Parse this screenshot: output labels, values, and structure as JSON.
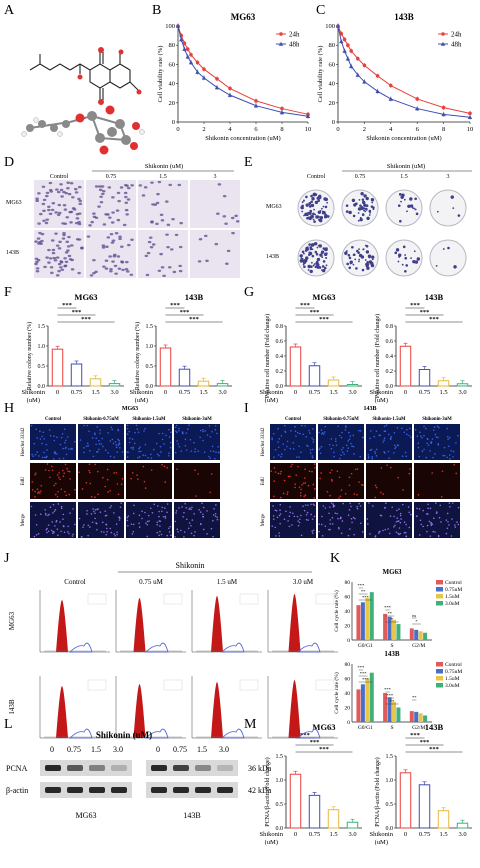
{
  "panels": {
    "A": "A",
    "B": "B",
    "C": "C",
    "D": "D",
    "E": "E",
    "F": "F",
    "G": "G",
    "H": "H",
    "I": "I",
    "J": "J",
    "K": "K",
    "L": "L",
    "M": "M"
  },
  "chart_data": [
    {
      "id": "B",
      "type": "line",
      "title": "MG63",
      "xlabel": "Shikonin concentration (uM)",
      "ylabel": "Cell viability rate (%)",
      "xlim": [
        0,
        10
      ],
      "ylim": [
        0,
        100
      ],
      "xticks": [
        "0",
        "2",
        "4",
        "6",
        "8",
        "10"
      ],
      "yticks": [
        "0",
        "20",
        "40",
        "60",
        "80",
        "100"
      ],
      "x": [
        0,
        0.25,
        0.5,
        0.75,
        1,
        1.5,
        2,
        3,
        4,
        6,
        8,
        10
      ],
      "series": [
        {
          "name": "24h",
          "color": "#e8413e",
          "values": [
            100,
            90,
            82,
            76,
            70,
            62,
            55,
            45,
            35,
            22,
            14,
            8
          ]
        },
        {
          "name": "48h",
          "color": "#3f4fb0",
          "values": [
            100,
            86,
            76,
            68,
            62,
            52,
            46,
            36,
            28,
            17,
            10,
            6
          ]
        }
      ],
      "legend": "top-right"
    },
    {
      "id": "C",
      "type": "line",
      "title": "143B",
      "xlabel": "Shikonin concentration (uM)",
      "ylabel": "Cell viability rate (%)",
      "xlim": [
        0,
        10
      ],
      "ylim": [
        0,
        100
      ],
      "xticks": [
        "0",
        "2",
        "4",
        "6",
        "8",
        "10"
      ],
      "yticks": [
        "0",
        "20",
        "40",
        "60",
        "80",
        "100"
      ],
      "x": [
        0,
        0.25,
        0.5,
        0.75,
        1,
        1.5,
        2,
        3,
        4,
        6,
        8,
        10
      ],
      "series": [
        {
          "name": "24h",
          "color": "#e8413e",
          "values": [
            100,
            92,
            86,
            80,
            74,
            66,
            59,
            48,
            38,
            24,
            15,
            9
          ]
        },
        {
          "name": "48h",
          "color": "#3f4fb0",
          "values": [
            100,
            84,
            74,
            66,
            58,
            49,
            42,
            32,
            24,
            14,
            8,
            5
          ]
        }
      ],
      "legend": "top-right"
    },
    {
      "id": "F1",
      "type": "bar",
      "title": "MG63",
      "ylabel": "Relative colony number (%)",
      "xlabel": "Shikonin\n(uM)",
      "categories": [
        "0",
        "0.75",
        "1.5",
        "3.0"
      ],
      "values": [
        0.92,
        0.55,
        0.18,
        0.06
      ],
      "ylim": [
        0,
        1.5
      ],
      "yticks": [
        "0.0",
        "0.5",
        "1.0",
        "1.5"
      ],
      "sig": [
        "***",
        "***",
        "***"
      ]
    },
    {
      "id": "F2",
      "type": "bar",
      "title": "143B",
      "ylabel": "Relative colony number (%)",
      "xlabel": "Shikonin\n(uM)",
      "categories": [
        "0",
        "0.75",
        "1.5",
        "3.0"
      ],
      "values": [
        0.95,
        0.42,
        0.12,
        0.06
      ],
      "ylim": [
        0,
        1.5
      ],
      "yticks": [
        "0.0",
        "0.5",
        "1.0",
        "1.5"
      ],
      "sig": [
        "***",
        "***",
        "***"
      ]
    },
    {
      "id": "G1",
      "type": "bar",
      "title": "MG63",
      "ylabel": "Positive cell number (Fold change)",
      "xlabel": "Shikonin\n(uM)",
      "categories": [
        "0",
        "0.75",
        "1.5",
        "3.0"
      ],
      "values": [
        0.52,
        0.27,
        0.08,
        0.02
      ],
      "ylim": [
        0,
        0.8
      ],
      "yticks": [
        "0.0",
        "0.2",
        "0.4",
        "0.6",
        "0.8"
      ],
      "sig": [
        "***",
        "***",
        "***"
      ]
    },
    {
      "id": "G2",
      "type": "bar",
      "title": "143B",
      "ylabel": "Positive cell number (Fold change)",
      "xlabel": "Shikonin\n(uM)",
      "categories": [
        "0",
        "0.75",
        "1.5",
        "3.0"
      ],
      "values": [
        0.53,
        0.22,
        0.07,
        0.03
      ],
      "ylim": [
        0,
        0.8
      ],
      "yticks": [
        "0.0",
        "0.2",
        "0.4",
        "0.6",
        "0.8"
      ],
      "sig": [
        "***",
        "***",
        "***"
      ]
    },
    {
      "id": "M1",
      "type": "bar",
      "title": "MG63",
      "ylabel": "PCNA/β-actin (Fold change)",
      "xlabel": "Shikonin\n(uM)",
      "categories": [
        "0",
        "0.75",
        "1.5",
        "3.0"
      ],
      "values": [
        1.12,
        0.68,
        0.38,
        0.12
      ],
      "ylim": [
        0,
        1.5
      ],
      "yticks": [
        "0.0",
        "0.5",
        "1.0",
        "1.5"
      ],
      "sig": [
        "***",
        "***",
        "***"
      ]
    },
    {
      "id": "M2",
      "type": "bar",
      "title": "143B",
      "ylabel": "PCNA/β-actin (Fold change)",
      "xlabel": "Shikonin\n(uM)",
      "categories": [
        "0",
        "0.75",
        "1.5",
        "3.0"
      ],
      "values": [
        1.15,
        0.9,
        0.36,
        0.1
      ],
      "ylim": [
        0,
        1.5
      ],
      "yticks": [
        "0.0",
        "0.5",
        "1.0",
        "1.5"
      ],
      "sig": [
        "***",
        "***",
        "***"
      ]
    },
    {
      "id": "K1",
      "type": "bar",
      "title": "MG63",
      "ylabel": "Cell cycle rate (%)",
      "categories": [
        "G0/G1",
        "S",
        "G2/M"
      ],
      "ylim": [
        0,
        80
      ],
      "yticks": [
        "0",
        "20",
        "40",
        "60",
        "80"
      ],
      "series": [
        {
          "name": "Control",
          "color": "#e05a5a",
          "values": [
            48,
            36,
            16
          ]
        },
        {
          "name": "0.75uM",
          "color": "#4a6fc4",
          "values": [
            52,
            32,
            14
          ]
        },
        {
          "name": "1.5uM",
          "color": "#e8c64a",
          "values": [
            58,
            28,
            12
          ]
        },
        {
          "name": "3.0uM",
          "color": "#3fb07a",
          "values": [
            66,
            22,
            10
          ]
        }
      ],
      "legend": "right",
      "sig": [
        "***",
        "**",
        "***",
        "***",
        "**",
        "*",
        "ns",
        "*"
      ]
    },
    {
      "id": "K2",
      "type": "bar",
      "title": "143B",
      "ylabel": "Cell cycle rate (%)",
      "categories": [
        "G0/G1",
        "S",
        "G2/M"
      ],
      "ylim": [
        0,
        80
      ],
      "yticks": [
        "0",
        "20",
        "40",
        "60",
        "80"
      ],
      "series": [
        {
          "name": "Control",
          "color": "#e05a5a",
          "values": [
            45,
            40,
            15
          ]
        },
        {
          "name": "0.75uM",
          "color": "#4a6fc4",
          "values": [
            52,
            34,
            14
          ]
        },
        {
          "name": "1.5uM",
          "color": "#e8c64a",
          "values": [
            60,
            28,
            12
          ]
        },
        {
          "name": "3.0uM",
          "color": "#3fb07a",
          "values": [
            68,
            20,
            9
          ]
        }
      ],
      "legend": "right",
      "sig": [
        "***",
        "***",
        "***",
        "***",
        "***",
        "**",
        "**"
      ]
    }
  ],
  "panelD": {
    "treatment": "Shikonin (uM)",
    "cols": [
      "Control",
      "0.75",
      "1.5",
      "3"
    ],
    "rows": [
      "MG63",
      "143B"
    ]
  },
  "panelE": {
    "treatment": "Shikonin (uM)",
    "cols": [
      "Control",
      "0.75",
      "1.5",
      "3"
    ],
    "rows": [
      "MG63",
      "143B"
    ]
  },
  "panelH": {
    "title": "MG63",
    "cols": [
      "Control",
      "Shikonin-0.75uM",
      "Shikonin-1.5uM",
      "Shikonin-3uM"
    ],
    "rows": [
      "Hoechst 33342",
      "EdU",
      "Merge"
    ]
  },
  "panelI": {
    "title": "143B",
    "cols": [
      "Control",
      "Shikonin-0.75uM",
      "Shikonin-1.5uM",
      "Shikonin-3uM"
    ],
    "rows": [
      "Hoechst 33342",
      "EdU",
      "Merge"
    ]
  },
  "panelJ": {
    "title": "Shikonin",
    "cols": [
      "Control",
      "0.75 uM",
      "1.5 uM",
      "3.0 uM"
    ],
    "rows": [
      "MG63",
      "143B"
    ]
  },
  "panelL": {
    "title": "Shikonin (uM)",
    "lanes": [
      "0",
      "0.75",
      "1.5",
      "3.0"
    ],
    "proteins": [
      "PCNA",
      "β-actin"
    ],
    "sizes": [
      "36 kDa",
      "42 kDa"
    ],
    "cells": [
      "MG63",
      "143B"
    ],
    "intensity": {
      "MG63": [
        [
          1.0,
          0.7,
          0.45,
          0.15
        ],
        [
          1,
          1,
          1,
          1
        ]
      ],
      "143B": [
        [
          1.0,
          0.85,
          0.4,
          0.12
        ],
        [
          1,
          1,
          1,
          1
        ]
      ]
    }
  }
}
